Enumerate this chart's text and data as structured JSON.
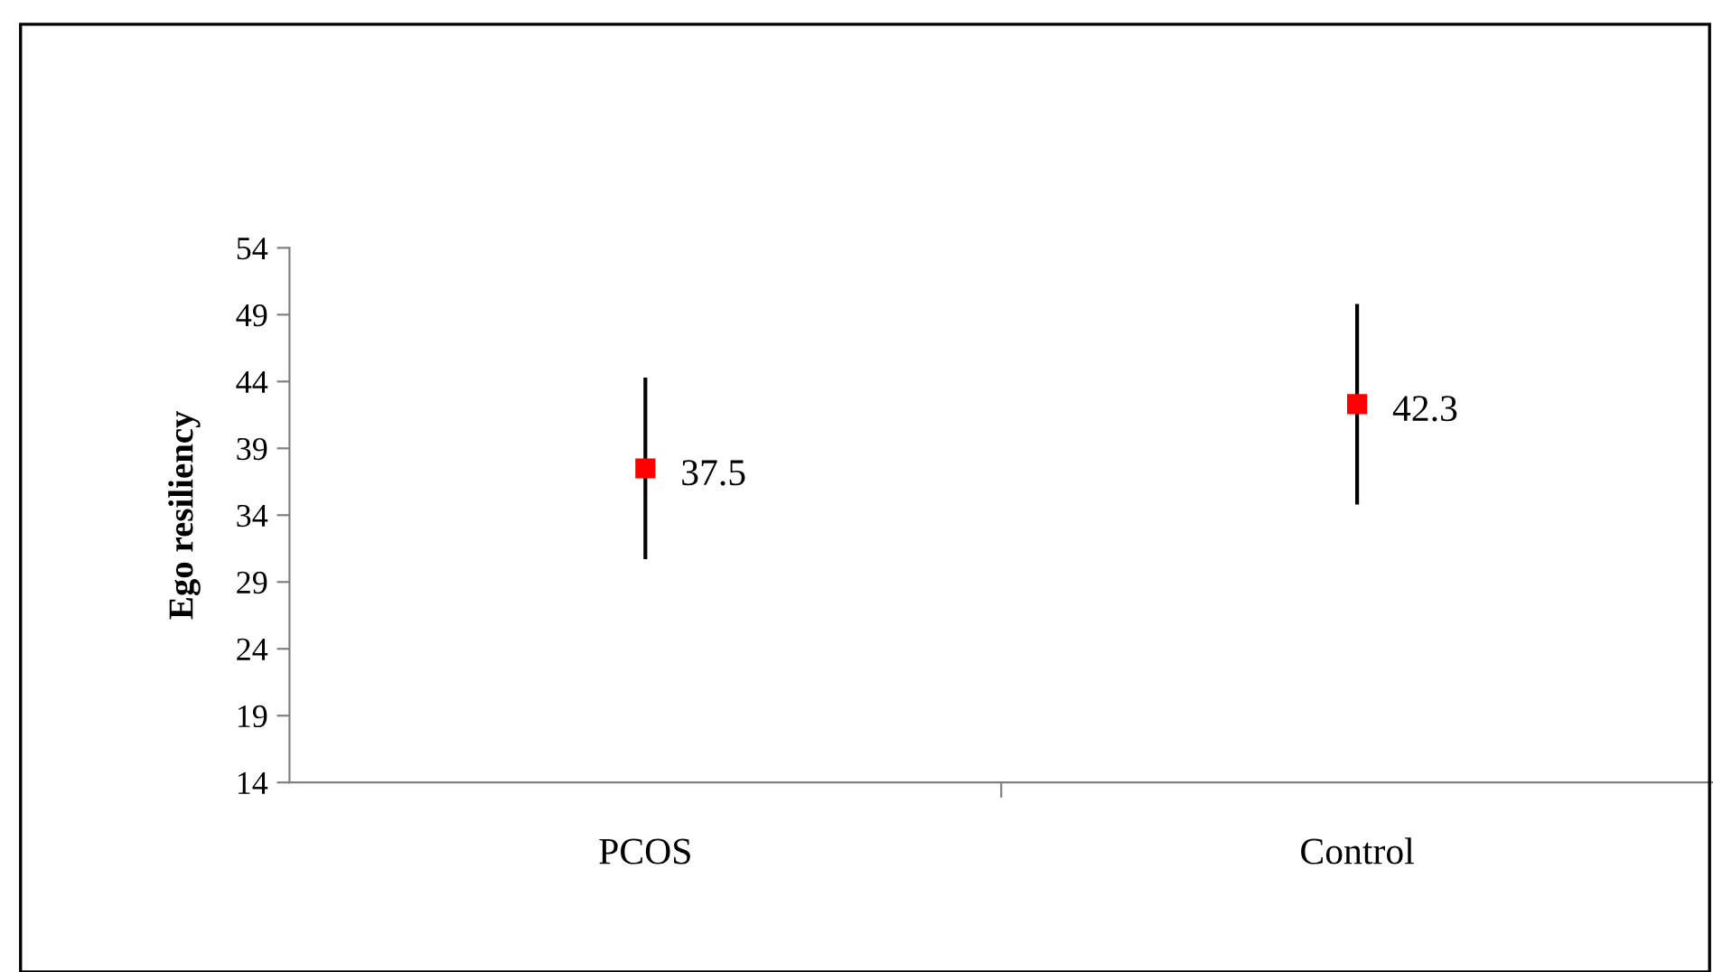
{
  "chart_data": {
    "type": "scatter",
    "ylabel": "Ego resiliency",
    "categories": [
      "PCOS",
      "Control"
    ],
    "values": [
      37.5,
      42.3
    ],
    "errors": [
      6.8,
      7.5
    ],
    "color": "#ff0000",
    "marker": "square",
    "data_labels": true,
    "ylim": [
      14,
      54
    ],
    "yticks": [
      14,
      19,
      24,
      29,
      34,
      39,
      44,
      49,
      54
    ],
    "grid": false,
    "legend": false
  }
}
